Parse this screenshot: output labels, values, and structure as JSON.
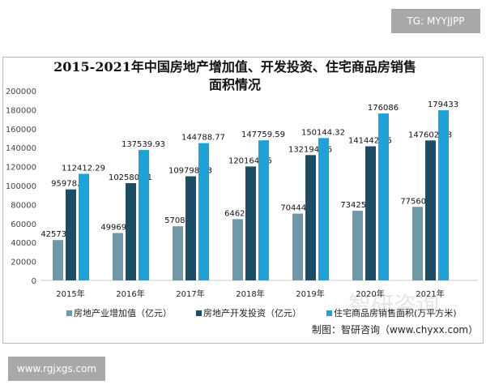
{
  "watermark_top": "TG: MYYJJPP",
  "watermark_bottom": "www.rgjxgs.com",
  "watermark_logo": "智研咨询",
  "source": "制图：智研咨询（www.chyxx.com）",
  "chart_data": {
    "type": "bar",
    "title": "2015-2021年中国房地产增加值、开发投资、住宅商品房销售面积情况",
    "categories": [
      "2015年",
      "2016年",
      "2017年",
      "2018年",
      "2019年",
      "2020年",
      "2021年"
    ],
    "ylim": [
      0,
      200000
    ],
    "yticks": [
      "0",
      "20000",
      "40000",
      "60000",
      "80000",
      "100000",
      "120000",
      "140000",
      "160000",
      "180000",
      "200000"
    ],
    "grid": false,
    "legend": "bottom",
    "series": [
      {
        "name": "房地产业增加值（亿元）",
        "color": "#6f98a8",
        "values": [
          42573.8,
          49969.4,
          57086,
          64623,
          70444.8,
          73425.3,
          77560.8
        ],
        "labels": [
          "42573.8",
          "49969.4",
          "57086",
          "64623",
          "70444.8",
          "73425.3",
          "77560.8"
        ]
      },
      {
        "name": "房地产开发投资（亿元）",
        "color": "#1b4e64",
        "values": [
          95978.85,
          102580.61,
          109798.53,
          120164.75,
          132194.26,
          141442.95,
          147602.08
        ],
        "labels": [
          "95978.85",
          "102580.61",
          "109798.53",
          "120164.75",
          "132194.26",
          "141442.95",
          "147602.08"
        ]
      },
      {
        "name": "住宅商品房销售面积(万平方米)",
        "color": "#1ea3d8",
        "values": [
          112412.29,
          137539.93,
          144788.77,
          147759.59,
          150144.32,
          176086,
          179433
        ],
        "labels": [
          "112412.29",
          "137539.93",
          "144788.77",
          "147759.59",
          "150144.32",
          "176086",
          "179433"
        ]
      }
    ]
  }
}
